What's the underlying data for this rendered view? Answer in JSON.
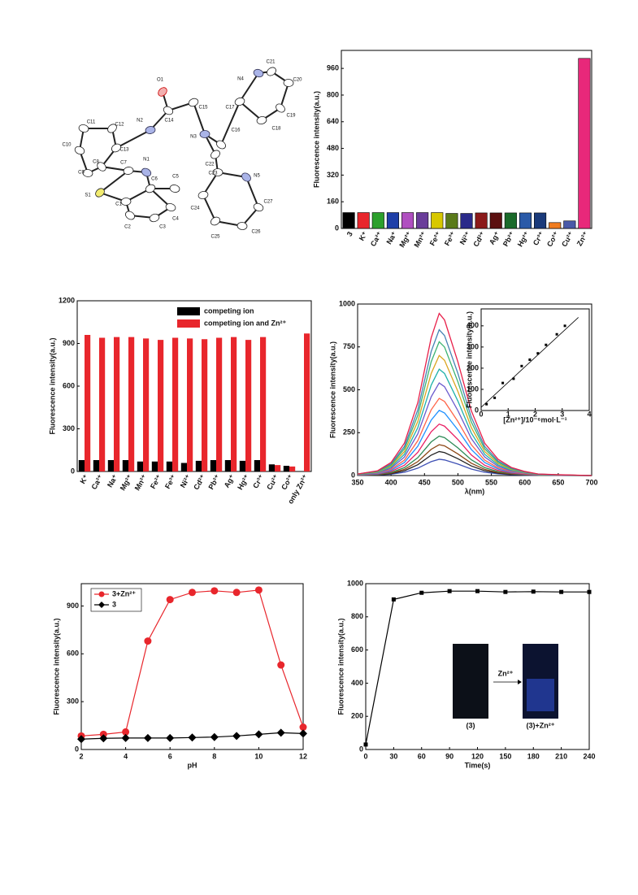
{
  "structure": {
    "atoms": [
      "O1",
      "N2",
      "C14",
      "C15",
      "C11",
      "C12",
      "N3",
      "C16",
      "C17",
      "N4",
      "C21",
      "C20",
      "C19",
      "C18",
      "C10",
      "C13",
      "C9",
      "C8",
      "C7",
      "N1",
      "C6",
      "C5",
      "S1",
      "C1",
      "C2",
      "C3",
      "C4",
      "C22",
      "C23",
      "N5",
      "C24",
      "C27",
      "C25",
      "C26"
    ]
  },
  "chart_data": [
    {
      "type": "bar",
      "ylabel": "Fluorescence intensity(a.u.)",
      "categories": [
        "3",
        "K⁺",
        "Ca²⁺",
        "Na⁺",
        "Mg²⁺",
        "Mn²⁺",
        "Fe²⁺",
        "Fe³⁺",
        "Ni²⁺",
        "Cd²⁺",
        "Ag⁺",
        "Pb²⁺",
        "Hg²⁺",
        "Cr³⁺",
        "Co²⁺",
        "Cu²⁺",
        "Zn²⁺"
      ],
      "values": [
        95,
        95,
        95,
        95,
        95,
        95,
        95,
        90,
        90,
        93,
        93,
        93,
        93,
        93,
        35,
        45,
        1020
      ],
      "colors": [
        "#000000",
        "#e8262c",
        "#2ca02c",
        "#1f3fa8",
        "#b04fc0",
        "#6a3d9a",
        "#d8c800",
        "#5a7a1a",
        "#2a2a8a",
        "#8b1a1a",
        "#5b1010",
        "#1a6a2a",
        "#2a5aa8",
        "#1a3a7a",
        "#f07c20",
        "#4a5aa8",
        "#e8287a"
      ],
      "ylim": [
        0,
        1068
      ],
      "yticks": [
        0,
        160,
        320,
        480,
        640,
        800,
        960
      ]
    },
    {
      "type": "bar",
      "ylabel": "Fluorescence intensity(a.u.)",
      "categories": [
        "K⁺",
        "Ca²⁺",
        "Na⁺",
        "Mg²⁺",
        "Mn²⁺",
        "Fe²⁺",
        "Fe³⁺",
        "Ni²⁺",
        "Cd²⁺",
        "Pb²⁺",
        "Ag⁺",
        "Hg²⁺",
        "Cr³⁺",
        "Cu²⁺",
        "Co²⁺",
        "only Zn²⁺"
      ],
      "series": [
        {
          "name": "competing ion",
          "color": "#000000",
          "values": [
            80,
            80,
            80,
            80,
            70,
            70,
            70,
            60,
            75,
            80,
            80,
            75,
            80,
            50,
            40,
            null
          ]
        },
        {
          "name": "competing ion and Zn²⁺",
          "color": "#e8262c",
          "values": [
            960,
            940,
            945,
            945,
            935,
            925,
            940,
            935,
            930,
            940,
            945,
            925,
            945,
            45,
            35,
            970
          ]
        }
      ],
      "ylim": [
        0,
        1200
      ],
      "yticks": [
        0,
        300,
        600,
        900,
        1200
      ],
      "legend": "upper right"
    },
    {
      "type": "line",
      "xlabel": "λ(nm)",
      "ylabel": "Fluorescence intensity(a.u.)",
      "x": [
        350,
        380,
        400,
        420,
        440,
        460,
        472,
        480,
        500,
        520,
        540,
        560,
        580,
        600,
        620,
        650,
        700
      ],
      "series": [
        {
          "color": "#3f51b5",
          "values": [
            1,
            3,
            8,
            19,
            43,
            81,
            95,
            91,
            67,
            38,
            19,
            10,
            5,
            2,
            1,
            0,
            0
          ]
        },
        {
          "color": "#222222",
          "values": [
            1,
            4,
            11,
            28,
            63,
            119,
            140,
            134,
            98,
            56,
            28,
            14,
            7,
            4,
            1,
            1,
            0
          ]
        },
        {
          "color": "#8b4513",
          "values": [
            2,
            5,
            14,
            36,
            81,
            153,
            180,
            173,
            126,
            72,
            36,
            18,
            9,
            5,
            2,
            1,
            0
          ]
        },
        {
          "color": "#2e8b57",
          "values": [
            2,
            7,
            18,
            46,
            104,
            196,
            230,
            221,
            161,
            92,
            46,
            23,
            12,
            6,
            2,
            1,
            0
          ]
        },
        {
          "color": "#e91e63",
          "values": [
            3,
            9,
            24,
            60,
            135,
            255,
            300,
            288,
            210,
            120,
            60,
            30,
            15,
            8,
            3,
            2,
            0
          ]
        },
        {
          "color": "#1e90ff",
          "values": [
            4,
            11,
            30,
            76,
            171,
            323,
            380,
            365,
            266,
            152,
            76,
            38,
            19,
            10,
            4,
            2,
            0
          ]
        },
        {
          "color": "#ff6347",
          "values": [
            5,
            14,
            36,
            90,
            203,
            383,
            450,
            432,
            315,
            180,
            90,
            45,
            23,
            11,
            5,
            2,
            0
          ]
        },
        {
          "color": "#6a5acd",
          "values": [
            5,
            16,
            43,
            108,
            243,
            459,
            540,
            518,
            378,
            216,
            108,
            54,
            27,
            14,
            5,
            3,
            0
          ]
        },
        {
          "color": "#20b2aa",
          "values": [
            6,
            19,
            50,
            124,
            279,
            527,
            620,
            595,
            434,
            248,
            124,
            62,
            31,
            16,
            6,
            3,
            0
          ]
        },
        {
          "color": "#daa520",
          "values": [
            7,
            21,
            56,
            140,
            315,
            595,
            700,
            672,
            490,
            280,
            140,
            70,
            35,
            18,
            7,
            4,
            0
          ]
        },
        {
          "color": "#3cb371",
          "values": [
            8,
            23,
            62,
            156,
            351,
            663,
            780,
            749,
            546,
            312,
            156,
            78,
            39,
            20,
            8,
            4,
            0
          ]
        },
        {
          "color": "#4682b4",
          "values": [
            9,
            26,
            68,
            170,
            383,
            723,
            850,
            816,
            595,
            340,
            170,
            85,
            43,
            21,
            9,
            4,
            0
          ]
        },
        {
          "color": "#e8204a",
          "values": [
            9,
            28,
            76,
            189,
            425,
            803,
            945,
            907,
            662,
            378,
            189,
            95,
            47,
            24,
            9,
            5,
            0
          ]
        }
      ],
      "xlim": [
        350,
        700
      ],
      "xticks": [
        350,
        400,
        450,
        500,
        550,
        600,
        650,
        700
      ],
      "ylim": [
        0,
        1000
      ],
      "yticks": [
        0,
        250,
        500,
        750,
        1000
      ]
    },
    {
      "type": "scatter",
      "xlabel": "[Zn²⁺]/10⁻⁶mol·L⁻¹",
      "ylabel": "Fluorescence intensity(a.u.)",
      "x": [
        0.2,
        0.5,
        0.8,
        1.2,
        1.5,
        1.8,
        2.1,
        2.4,
        2.8,
        3.1
      ],
      "values": [
        30,
        60,
        130,
        150,
        210,
        240,
        270,
        310,
        360,
        400
      ],
      "fit_x": [
        0,
        3.6
      ],
      "fit_y": [
        15,
        440
      ],
      "color": "#000000",
      "xlim": [
        0,
        4
      ],
      "xticks": [
        0,
        1,
        2,
        3,
        4
      ],
      "ylim": [
        0,
        480
      ],
      "yticks": [
        0,
        100,
        200,
        300,
        400
      ]
    },
    {
      "type": "line",
      "xlabel": "pH",
      "ylabel": "Fluorescence intensity(a.u.)",
      "x": [
        2,
        3,
        4,
        5,
        6,
        7,
        8,
        9,
        10,
        11,
        12
      ],
      "series": [
        {
          "name": "3+Zn²⁺",
          "color": "#e8262c",
          "marker": "circle",
          "values": [
            85,
            95,
            110,
            680,
            940,
            985,
            995,
            985,
            1000,
            530,
            140
          ]
        },
        {
          "name": "3",
          "color": "#000000",
          "marker": "diamond",
          "values": [
            65,
            70,
            72,
            72,
            72,
            75,
            78,
            85,
            95,
            105,
            100
          ]
        }
      ],
      "xlim": [
        2,
        12
      ],
      "xticks": [
        2,
        4,
        6,
        8,
        10,
        12
      ],
      "ylim": [
        0,
        1040
      ],
      "yticks": [
        0,
        300,
        600,
        900
      ],
      "legend": "upper left"
    },
    {
      "type": "line",
      "xlabel": "Time(s)",
      "ylabel": "Fluorescence intensity(a.u.)",
      "x": [
        0,
        30,
        60,
        90,
        120,
        150,
        180,
        210,
        240
      ],
      "series": [
        {
          "color": "#000000",
          "marker": "square",
          "values": [
            30,
            905,
            945,
            955,
            955,
            950,
            952,
            950,
            950
          ]
        }
      ],
      "xlim": [
        0,
        240
      ],
      "xticks": [
        0,
        30,
        60,
        90,
        120,
        150,
        180,
        210,
        240
      ],
      "ylim": [
        0,
        1000
      ],
      "yticks": [
        0,
        200,
        400,
        600,
        800,
        1000
      ],
      "annotations": [
        "(3)",
        "Zn²⁺",
        "(3)+Zn²⁺"
      ]
    }
  ]
}
